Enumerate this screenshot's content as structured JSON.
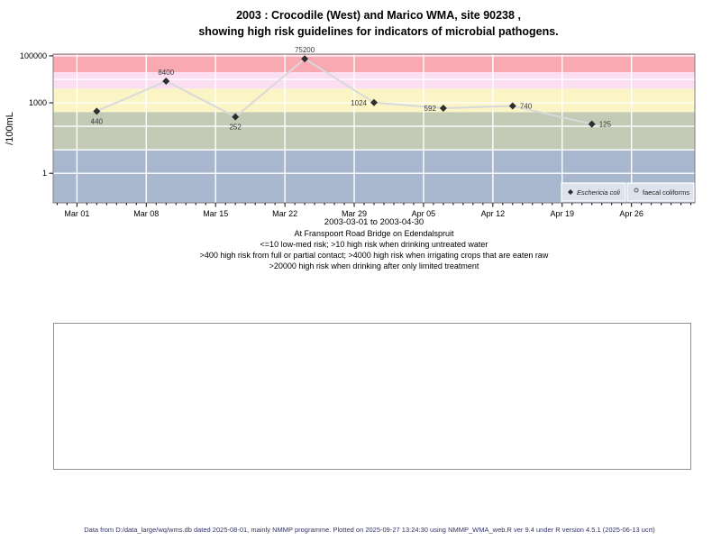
{
  "title": {
    "line1": "2003 : Crocodile (West) and Marico WMA, site 90238 ,",
    "line2": "showing high risk guidelines for indicators of microbial pathogens."
  },
  "chart_data": {
    "type": "line",
    "title": "2003 : Crocodile (West) and Marico WMA, site 90238 , showing high risk guidelines for indicators of microbial pathogens.",
    "xlabel": "",
    "ylabel": "/100mL",
    "y_scale": "log10",
    "x_domain_days": [
      -2.4,
      62.4
    ],
    "y_domain": [
      0.055,
      119000
    ],
    "y_ticks": [
      {
        "value": 1,
        "label": "1"
      },
      {
        "value": 1000,
        "label": "1000"
      },
      {
        "value": 100000,
        "label": "100000"
      }
    ],
    "y_gridlines": [
      1,
      10,
      100,
      1000,
      10000,
      100000
    ],
    "x_ticks": [
      {
        "day": 0,
        "label": "Mar 01"
      },
      {
        "day": 7,
        "label": "Mar 08"
      },
      {
        "day": 14,
        "label": "Mar 15"
      },
      {
        "day": 21,
        "label": "Mar 22"
      },
      {
        "day": 28,
        "label": "Mar 29"
      },
      {
        "day": 35,
        "label": "Apr 05"
      },
      {
        "day": 42,
        "label": "Apr 12"
      },
      {
        "day": 49,
        "label": "Apr 19"
      },
      {
        "day": 56,
        "label": "Apr 26"
      }
    ],
    "grid_color": "#ffffff",
    "plot_border_color": "#7f7f7f",
    "bands": [
      {
        "from": 20000,
        "to": 119000,
        "color": "#f8a9b2",
        "label": ">20000 high risk when drinking after only limited treatment"
      },
      {
        "from": 4000,
        "to": 20000,
        "color": "#fcdef2",
        "label": ">4000 high risk when irrigating crops that are eaten raw"
      },
      {
        "from": 400,
        "to": 4000,
        "color": "#fbf5c5",
        "label": ">400 high risk from full or partial contact"
      },
      {
        "from": 10,
        "to": 400,
        "color": "#c3cbb6",
        "label": ">10 high risk when drinking untreated water"
      },
      {
        "from": 0.055,
        "to": 10,
        "color": "#a8b6ce",
        "label": "<=10 low-med risk"
      }
    ],
    "series": [
      {
        "name": "Eschericia coli",
        "marker": "filled-diamond",
        "marker_color": "#2e2e2e",
        "line_color": "#d9d9d9",
        "label_color": "#3a3a3a",
        "points": [
          {
            "day": 2,
            "date": "Mar 03",
            "value": 440,
            "label": "440",
            "label_pos": "below"
          },
          {
            "day": 9,
            "date": "Mar 10",
            "value": 8400,
            "label": "8400",
            "label_pos": "above"
          },
          {
            "day": 16,
            "date": "Mar 17",
            "value": 252,
            "label": "252",
            "label_pos": "below"
          },
          {
            "day": 23,
            "date": "Mar 24",
            "value": 75200,
            "label": "75200",
            "label_pos": "above"
          },
          {
            "day": 30,
            "date": "Mar 31",
            "value": 1024,
            "label": "1024",
            "label_pos": "left"
          },
          {
            "day": 37,
            "date": "Apr 07",
            "value": 592,
            "label": "592",
            "label_pos": "left"
          },
          {
            "day": 44,
            "date": "Apr 14",
            "value": 740,
            "label": "740",
            "label_pos": "right"
          },
          {
            "day": 52,
            "date": "Apr 22",
            "value": 125,
            "label": "125",
            "label_pos": "right"
          }
        ]
      },
      {
        "name": "faecal coliforms",
        "marker": "open-circle",
        "marker_color": "#555555",
        "points": []
      }
    ],
    "legend": {
      "position": "bottom-right-inside",
      "background": "#dce3ed",
      "border": "#ffffff",
      "entries": [
        {
          "label": "Eschericia coli",
          "marker": "filled-diamond",
          "italic": true
        },
        {
          "label": "faecal coliforms",
          "marker": "open-circle",
          "italic": false
        }
      ]
    },
    "date_range_label": "2003-03-01 to 2003-04-30"
  },
  "subtitle": {
    "location": "At Franspoort Road Bridge on Edendalspruit",
    "guideline1": "<=10 low-med risk; >10 high risk when drinking untreated water",
    "guideline2": ">400 high risk from full or partial contact; >4000 high risk when irrigating crops that are eaten raw",
    "guideline3": ">20000 high risk when drinking after only limited treatment"
  },
  "footer": {
    "text": "Data from D:/data_large/wq/wms.db dated 2025-08-01, mainly NMMP programme. Plotted on 2025-09-27 13:24:30 using NMMP_WMA_web.R ver 9.4 under R version 4.5.1 (2025-06-13 ucrt)"
  }
}
